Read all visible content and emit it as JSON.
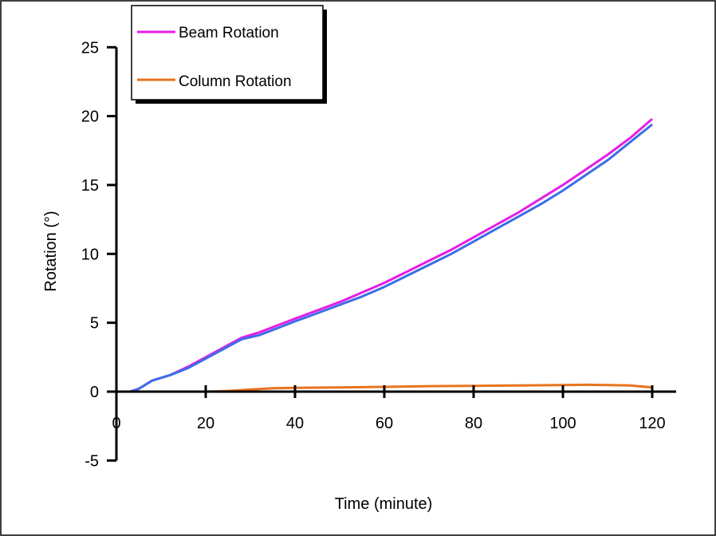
{
  "chart_data": {
    "type": "line",
    "xlabel": "Time (minute)",
    "ylabel": "Rotation (°)",
    "xlim": [
      0,
      120
    ],
    "ylim": [
      -5,
      25
    ],
    "xticks": [
      "0",
      "20",
      "40",
      "60",
      "80",
      "100",
      "120"
    ],
    "yticks": [
      "-5",
      "0",
      "5",
      "10",
      "15",
      "20",
      "25"
    ],
    "xtick_values": [
      0,
      20,
      40,
      60,
      80,
      100,
      120
    ],
    "ytick_values": [
      -5,
      0,
      5,
      10,
      15,
      20,
      25
    ],
    "grid": false,
    "legend_position": "top-left",
    "legend": [
      "Beam Rotation",
      "Column Rotation"
    ],
    "series": [
      {
        "name": "Beam Rotation",
        "color": "#e61ce6",
        "x": [
          3,
          5,
          8,
          12,
          16,
          20,
          24,
          28,
          32,
          36,
          40,
          45,
          50,
          55,
          60,
          65,
          70,
          75,
          80,
          85,
          90,
          95,
          100,
          105,
          110,
          115,
          120
        ],
        "y": [
          0,
          0.2,
          0.8,
          1.2,
          1.8,
          2.5,
          3.2,
          3.9,
          4.3,
          4.8,
          5.3,
          5.9,
          6.5,
          7.2,
          7.9,
          8.7,
          9.5,
          10.3,
          11.2,
          12.1,
          13.0,
          14.0,
          15.0,
          16.1,
          17.2,
          18.4,
          19.8
        ]
      },
      {
        "name": "",
        "color": "#3a6ee8",
        "x": [
          3,
          5,
          8,
          12,
          16,
          20,
          24,
          28,
          32,
          36,
          40,
          45,
          50,
          55,
          60,
          65,
          70,
          75,
          80,
          85,
          90,
          95,
          100,
          105,
          110,
          115,
          120
        ],
        "y": [
          0,
          0.2,
          0.8,
          1.2,
          1.7,
          2.4,
          3.1,
          3.8,
          4.1,
          4.6,
          5.1,
          5.7,
          6.3,
          6.9,
          7.6,
          8.4,
          9.2,
          10.0,
          10.9,
          11.8,
          12.7,
          13.6,
          14.6,
          15.7,
          16.8,
          18.1,
          19.4
        ]
      },
      {
        "name": "Column Rotation",
        "color": "#e8731e",
        "x": [
          3,
          10,
          20,
          25,
          30,
          35,
          40,
          50,
          60,
          70,
          80,
          90,
          100,
          105,
          110,
          115,
          120
        ],
        "y": [
          0,
          0.0,
          0.0,
          0.05,
          0.15,
          0.25,
          0.28,
          0.3,
          0.35,
          0.4,
          0.42,
          0.45,
          0.48,
          0.5,
          0.48,
          0.45,
          0.3
        ]
      }
    ]
  }
}
